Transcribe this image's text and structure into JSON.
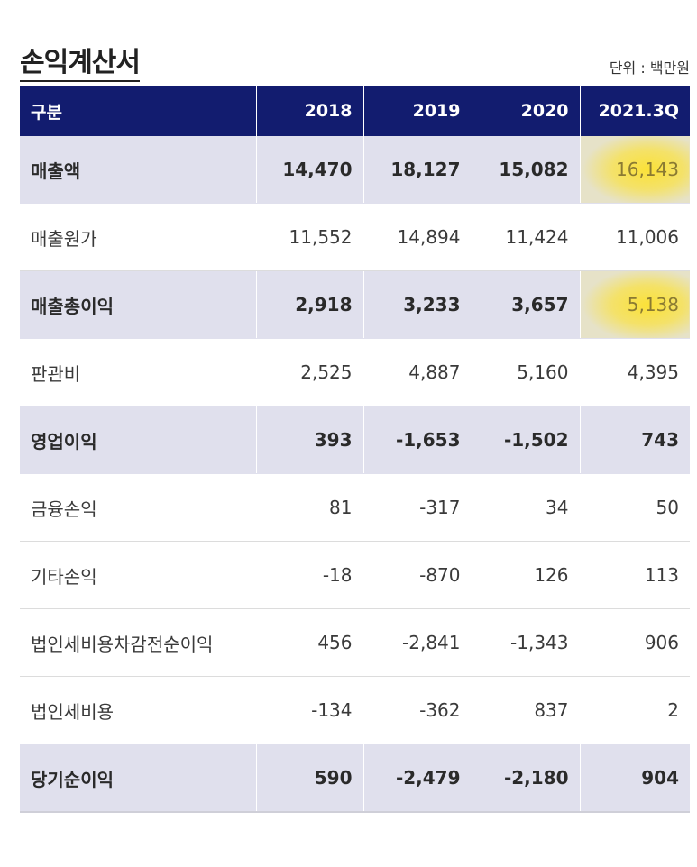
{
  "header": {
    "title": "손익계산서",
    "unit": "단위 : 백만원"
  },
  "table": {
    "columns": [
      "구분",
      "2018",
      "2019",
      "2020",
      "2021.3Q"
    ],
    "rows": [
      {
        "label": "매출액",
        "values": [
          "14,470",
          "18,127",
          "15,082",
          "16,143"
        ],
        "highlight": true
      },
      {
        "label": "매출원가",
        "values": [
          "11,552",
          "14,894",
          "11,424",
          "11,006"
        ],
        "highlight": false
      },
      {
        "label": "매출총이익",
        "values": [
          "2,918",
          "3,233",
          "3,657",
          "5,138"
        ],
        "highlight": true
      },
      {
        "label": "판관비",
        "values": [
          "2,525",
          "4,887",
          "5,160",
          "4,395"
        ],
        "highlight": false
      },
      {
        "label": "영업이익",
        "values": [
          "393",
          "-1,653",
          "-1,502",
          "743"
        ],
        "highlight": true
      },
      {
        "label": "금융손익",
        "values": [
          "81",
          "-317",
          "34",
          "50"
        ],
        "highlight": false
      },
      {
        "label": "기타손익",
        "values": [
          "-18",
          "-870",
          "126",
          "113"
        ],
        "highlight": false
      },
      {
        "label": "법인세비용차감전순이익",
        "values": [
          "456",
          "-2,841",
          "-1,343",
          "906"
        ],
        "highlight": false
      },
      {
        "label": "법인세비용",
        "values": [
          "-134",
          "-362",
          "837",
          "2"
        ],
        "highlight": false
      },
      {
        "label": "당기순이익",
        "values": [
          "590",
          "-2,479",
          "-2,180",
          "904"
        ],
        "highlight": true
      }
    ],
    "marker_color": "#ffe11e",
    "header_color": "#121c6f",
    "band_color": "#e0e0ed"
  }
}
